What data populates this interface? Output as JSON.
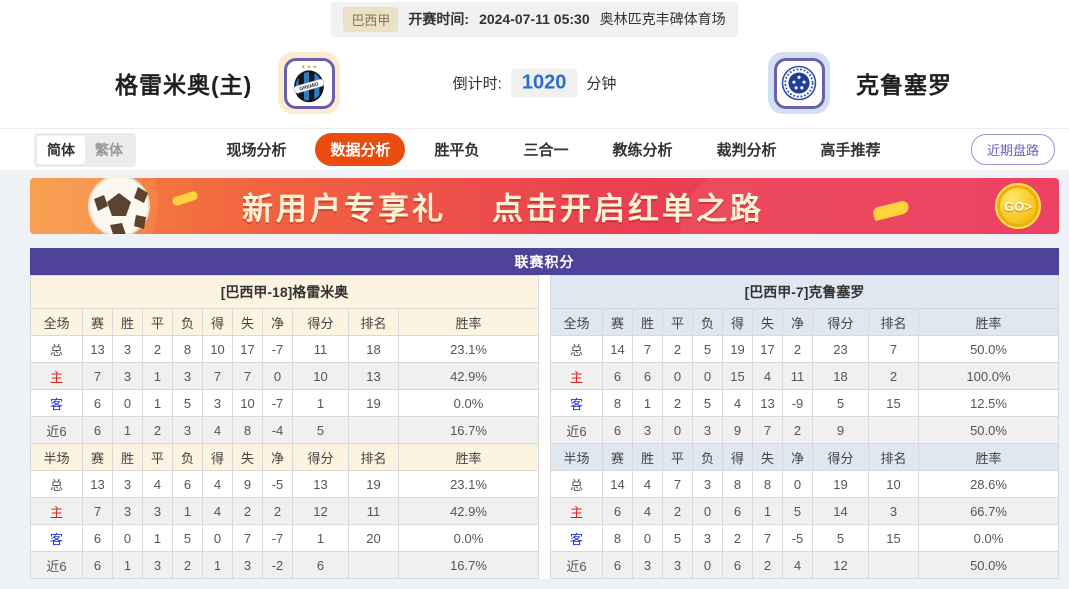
{
  "top_bar": {
    "league_tag": "巴西甲",
    "kickoff_label": "开赛时间:",
    "kickoff_time": "2024-07-11 05:30",
    "venue": "奥林匹克丰碑体育场"
  },
  "header": {
    "home_name": "格雷米奥(主)",
    "away_name": "克鲁塞罗",
    "countdown_label": "倒计时:",
    "countdown_value": "1020",
    "countdown_unit": "分钟",
    "home_badge_text": "GREMIO"
  },
  "nav": {
    "lang": {
      "simplified": "简体",
      "traditional": "繁体"
    },
    "tabs": [
      {
        "id": "live",
        "label": "现场分析",
        "active": false
      },
      {
        "id": "data",
        "label": "数据分析",
        "active": true
      },
      {
        "id": "wdl",
        "label": "胜平负",
        "active": false
      },
      {
        "id": "three-in-one",
        "label": "三合一",
        "active": false
      },
      {
        "id": "coach",
        "label": "教练分析",
        "active": false
      },
      {
        "id": "referee",
        "label": "裁判分析",
        "active": false
      },
      {
        "id": "expert",
        "label": "高手推荐",
        "active": false
      }
    ],
    "recent_trend_button": "近期盘路"
  },
  "banner": {
    "headline_1": "新用户专享礼",
    "headline_2": "点击开启红单之路",
    "go_label": "GO>"
  },
  "league_table": {
    "title": "联赛积分",
    "home": {
      "team_title": "[巴西甲-18]格雷米奥",
      "sections": [
        {
          "header": [
            "全场",
            "赛",
            "胜",
            "平",
            "负",
            "得",
            "失",
            "净",
            "得分",
            "排名",
            "胜率"
          ],
          "rows": [
            {
              "label": "总",
              "type": "total",
              "values": [
                "13",
                "3",
                "2",
                "8",
                "10",
                "17",
                "-7",
                "11",
                "18",
                "23.1%"
              ]
            },
            {
              "label": "主",
              "type": "home",
              "values": [
                "7",
                "3",
                "1",
                "3",
                "7",
                "7",
                "0",
                "10",
                "13",
                "42.9%"
              ]
            },
            {
              "label": "客",
              "type": "away",
              "values": [
                "6",
                "0",
                "1",
                "5",
                "3",
                "10",
                "-7",
                "1",
                "19",
                "0.0%"
              ]
            },
            {
              "label": "近6",
              "type": "recent",
              "values": [
                "6",
                "1",
                "2",
                "3",
                "4",
                "8",
                "-4",
                "5",
                "",
                "16.7%"
              ]
            }
          ]
        },
        {
          "header": [
            "半场",
            "赛",
            "胜",
            "平",
            "负",
            "得",
            "失",
            "净",
            "得分",
            "排名",
            "胜率"
          ],
          "rows": [
            {
              "label": "总",
              "type": "total",
              "values": [
                "13",
                "3",
                "4",
                "6",
                "4",
                "9",
                "-5",
                "13",
                "19",
                "23.1%"
              ]
            },
            {
              "label": "主",
              "type": "home",
              "values": [
                "7",
                "3",
                "3",
                "1",
                "4",
                "2",
                "2",
                "12",
                "11",
                "42.9%"
              ]
            },
            {
              "label": "客",
              "type": "away",
              "values": [
                "6",
                "0",
                "1",
                "5",
                "0",
                "7",
                "-7",
                "1",
                "20",
                "0.0%"
              ]
            },
            {
              "label": "近6",
              "type": "recent",
              "values": [
                "6",
                "1",
                "3",
                "2",
                "1",
                "3",
                "-2",
                "6",
                "",
                "16.7%"
              ]
            }
          ]
        }
      ]
    },
    "away": {
      "team_title": "[巴西甲-7]克鲁塞罗",
      "sections": [
        {
          "header": [
            "全场",
            "赛",
            "胜",
            "平",
            "负",
            "得",
            "失",
            "净",
            "得分",
            "排名",
            "胜率"
          ],
          "rows": [
            {
              "label": "总",
              "type": "total",
              "values": [
                "14",
                "7",
                "2",
                "5",
                "19",
                "17",
                "2",
                "23",
                "7",
                "50.0%"
              ]
            },
            {
              "label": "主",
              "type": "home",
              "values": [
                "6",
                "6",
                "0",
                "0",
                "15",
                "4",
                "11",
                "18",
                "2",
                "100.0%"
              ]
            },
            {
              "label": "客",
              "type": "away",
              "values": [
                "8",
                "1",
                "2",
                "5",
                "4",
                "13",
                "-9",
                "5",
                "15",
                "12.5%"
              ]
            },
            {
              "label": "近6",
              "type": "recent",
              "values": [
                "6",
                "3",
                "0",
                "3",
                "9",
                "7",
                "2",
                "9",
                "",
                "50.0%"
              ]
            }
          ]
        },
        {
          "header": [
            "半场",
            "赛",
            "胜",
            "平",
            "负",
            "得",
            "失",
            "净",
            "得分",
            "排名",
            "胜率"
          ],
          "rows": [
            {
              "label": "总",
              "type": "total",
              "values": [
                "14",
                "4",
                "7",
                "3",
                "8",
                "8",
                "0",
                "19",
                "10",
                "28.6%"
              ]
            },
            {
              "label": "主",
              "type": "home",
              "values": [
                "6",
                "4",
                "2",
                "0",
                "6",
                "1",
                "5",
                "14",
                "3",
                "66.7%"
              ]
            },
            {
              "label": "客",
              "type": "away",
              "values": [
                "8",
                "0",
                "5",
                "3",
                "2",
                "7",
                "-5",
                "5",
                "15",
                "0.0%"
              ]
            },
            {
              "label": "近6",
              "type": "recent",
              "values": [
                "6",
                "3",
                "3",
                "0",
                "6",
                "2",
                "4",
                "12",
                "",
                "50.0%"
              ]
            }
          ]
        }
      ]
    }
  },
  "colors": {
    "accent_purple": "#4f4299",
    "active_tab_orange": "#ea4c0f",
    "home_header_bg": "#fcf3e1",
    "away_header_bg": "#dfe7f1",
    "countdown_blue": "#2a6fc9",
    "home_row_red": "#dd2222",
    "away_row_blue": "#2233dd",
    "banner_gold": "#ffd23e"
  }
}
